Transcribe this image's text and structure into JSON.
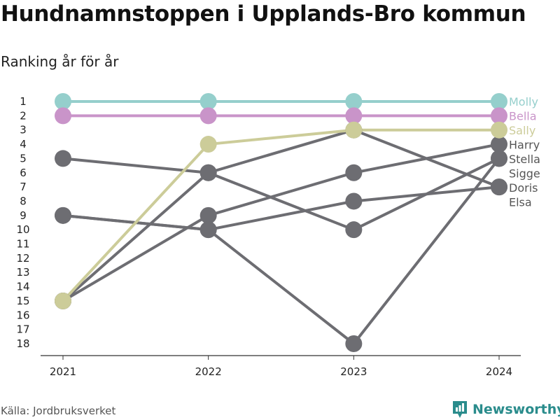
{
  "title": "Hundnamnstoppen i Upplands-Bro kommun",
  "subtitle": "Ranking år för år",
  "source": "Källa: Jordbruksverket",
  "brand": {
    "name": "Newsworthy",
    "icon": "newsworthy-logo-icon",
    "color": "#2a8c8c"
  },
  "chart_data": {
    "type": "line",
    "title": "Hundnamnstoppen i Upplands-Bro kommun",
    "subtitle": "Ranking år för år",
    "xlabel": "",
    "ylabel": "",
    "x": [
      "2021",
      "2022",
      "2023",
      "2024"
    ],
    "yticks": [
      "1",
      "2",
      "3",
      "4",
      "5",
      "6",
      "7",
      "8",
      "9",
      "10",
      "11",
      "12",
      "13",
      "14",
      "15",
      "16",
      "17",
      "18"
    ],
    "ylim": [
      1,
      18
    ],
    "y_reversed": true,
    "grid": false,
    "legend": "end-labels",
    "series": [
      {
        "name": "Molly",
        "values": [
          1,
          1,
          1,
          1
        ],
        "color": "#95cfcc",
        "label_color": "#95cfcc"
      },
      {
        "name": "Bella",
        "values": [
          2,
          2,
          2,
          2
        ],
        "color": "#c994c9",
        "label_color": "#c994c9"
      },
      {
        "name": "Sally",
        "values": [
          15,
          4,
          3,
          3
        ],
        "color": "#cccc99",
        "label_color": "#cccc99"
      },
      {
        "name": "Harry",
        "values": [
          15,
          9,
          6,
          4
        ],
        "color": "#6d6d72",
        "label_color": "#555555"
      },
      {
        "name": "Stella",
        "values": [
          5,
          6,
          10,
          5
        ],
        "color": "#6d6d72",
        "label_color": "#555555"
      },
      {
        "name": "Sigge",
        "values": [
          9,
          10,
          18,
          5
        ],
        "color": "#6d6d72",
        "label_color": "#555555"
      },
      {
        "name": "Doris",
        "values": [
          9,
          10,
          8,
          7
        ],
        "color": "#6d6d72",
        "label_color": "#555555"
      },
      {
        "name": "Elsa",
        "values": [
          15,
          6,
          3,
          7
        ],
        "color": "#6d6d72",
        "label_color": "#555555"
      }
    ]
  }
}
